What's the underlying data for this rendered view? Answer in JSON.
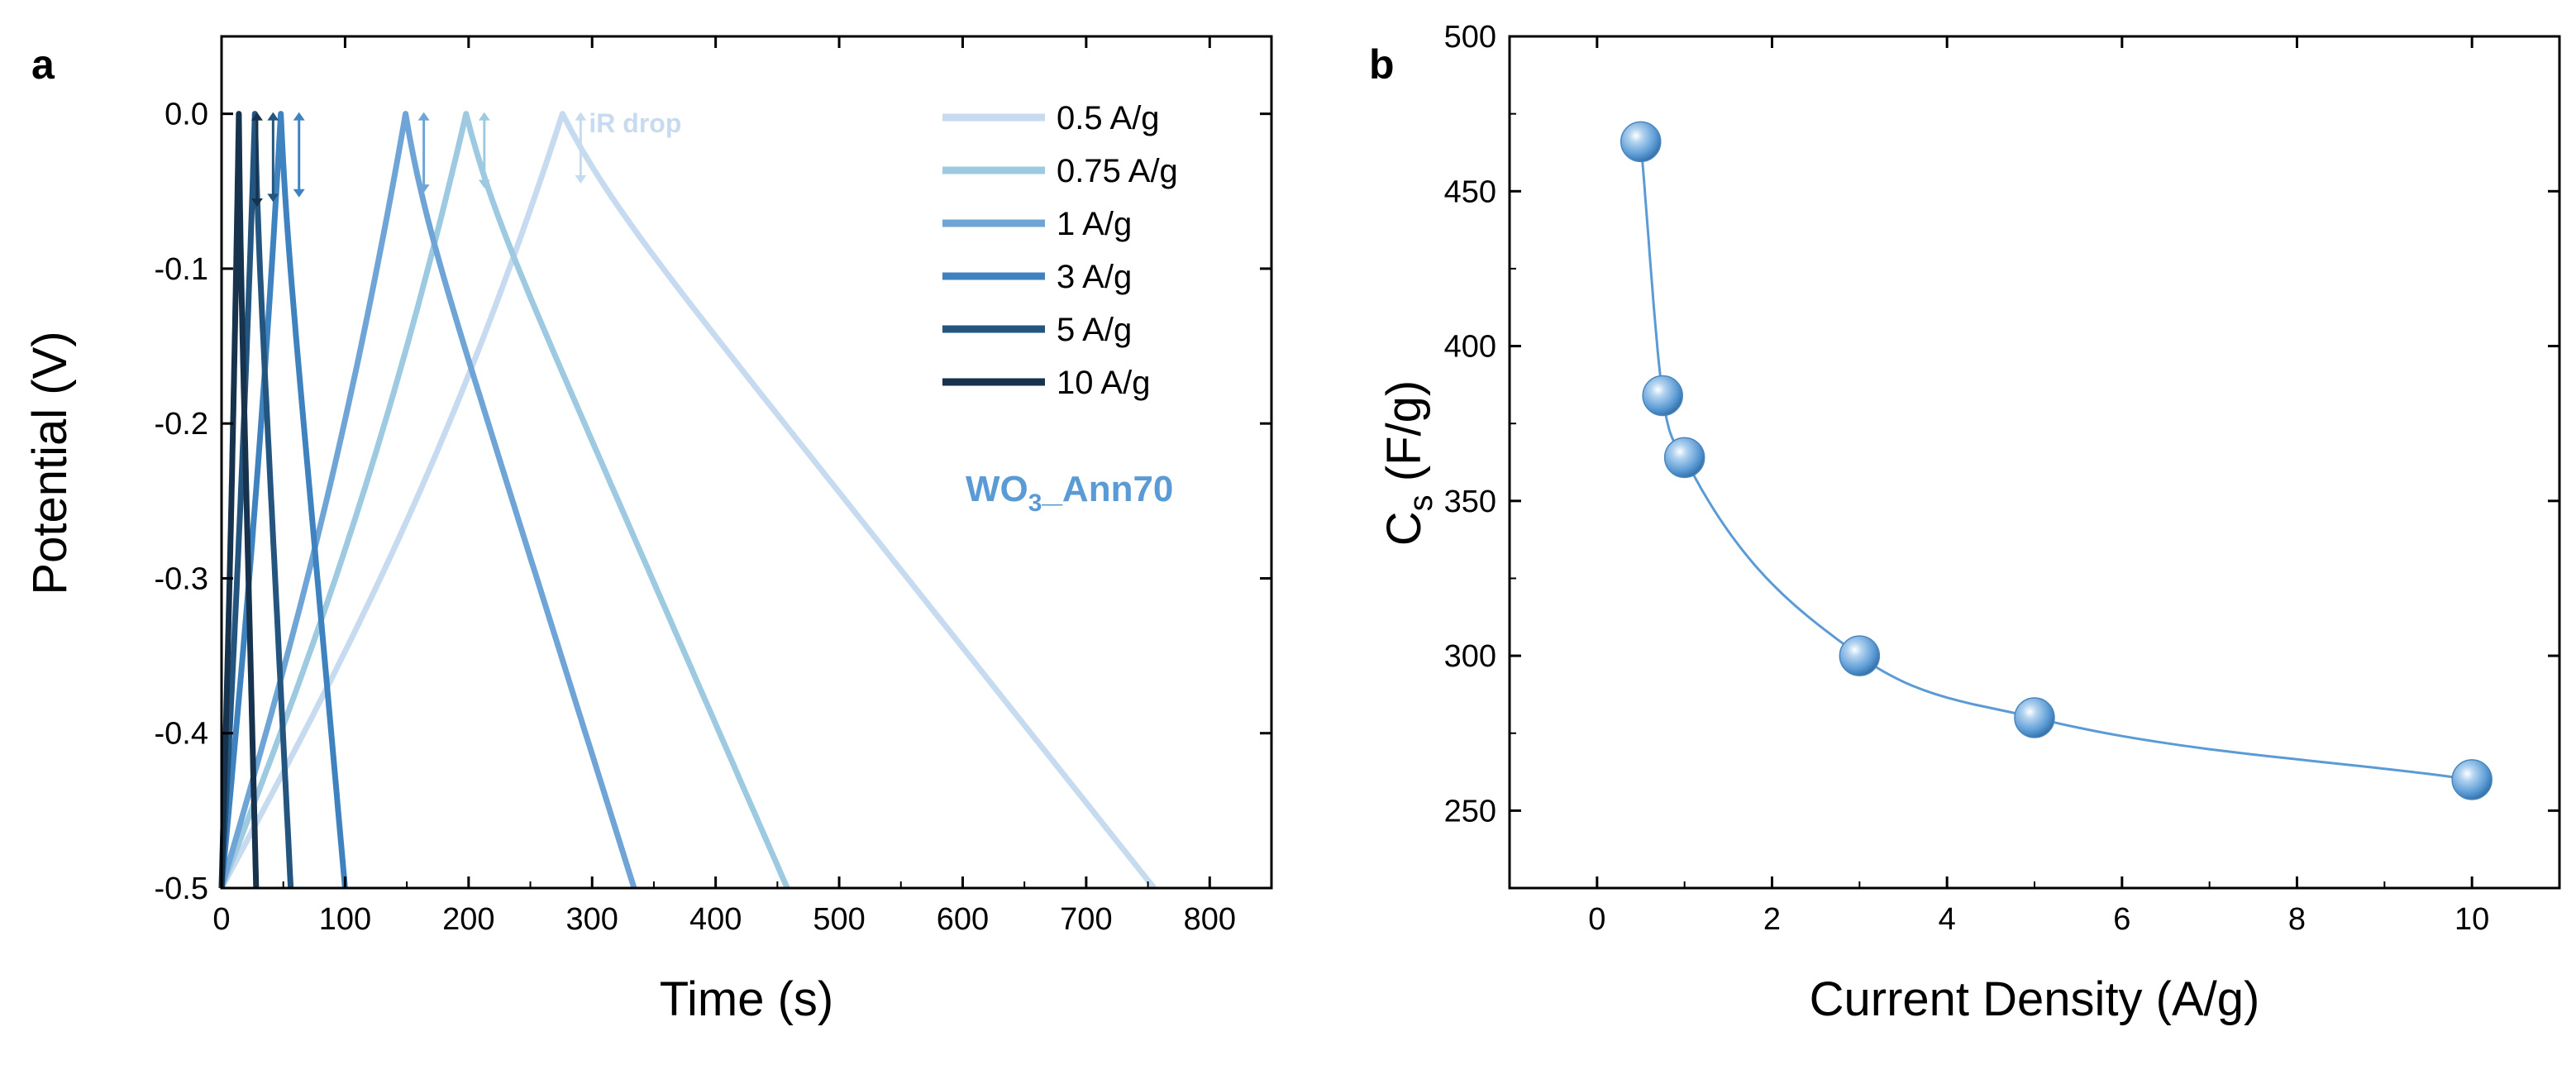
{
  "chart_data": [
    {
      "panel": "a",
      "type": "line",
      "xlabel": "Time (s)",
      "ylabel": "Potential (V)",
      "xlim": [
        0,
        850
      ],
      "ylim": [
        -0.5,
        0.05
      ],
      "xticks": [
        0,
        100,
        200,
        300,
        400,
        500,
        600,
        700,
        800
      ],
      "yticks": [
        0.0,
        -0.1,
        -0.2,
        -0.3,
        -0.4,
        -0.5
      ],
      "xtick_labels": [
        "0",
        "100",
        "200",
        "300",
        "400",
        "500",
        "600",
        "700",
        "800"
      ],
      "ytick_labels": [
        "0.0",
        "-0.1",
        "-0.2",
        "-0.3",
        "-0.4",
        "-0.5"
      ],
      "annotation": "iR drop",
      "sample_label": {
        "main": "WO",
        "sub": "3",
        "rest": "_Ann70"
      },
      "series": [
        {
          "name": "0.5 A/g",
          "color": "#c6dbef",
          "charge_end": 276,
          "discharge_end": 755,
          "ir_drop": 0.02
        },
        {
          "name": "0.75 A/g",
          "color": "#9ecae1",
          "charge_end": 198,
          "discharge_end": 458,
          "ir_drop": 0.025
        },
        {
          "name": "1 A/g",
          "color": "#6fa5d6",
          "charge_end": 149,
          "discharge_end": 334,
          "ir_drop": 0.03
        },
        {
          "name": "3 A/g",
          "color": "#3f82c0",
          "charge_end": 48,
          "discharge_end": 100,
          "ir_drop": 0.035
        },
        {
          "name": "5 A/g",
          "color": "#24557f",
          "charge_end": 27,
          "discharge_end": 56,
          "ir_drop": 0.04
        },
        {
          "name": "10 A/g",
          "color": "#16324d",
          "charge_end": 14,
          "discharge_end": 28,
          "ir_drop": 0.05
        }
      ]
    },
    {
      "panel": "b",
      "type": "scatter",
      "xlabel": "Current Density (A/g)",
      "ylabel": {
        "main": "C",
        "sub": "s",
        "rest": " (F/g)"
      },
      "xlim": [
        -1,
        11
      ],
      "ylim": [
        225,
        500
      ],
      "xticks": [
        0,
        2,
        4,
        6,
        8,
        10
      ],
      "yticks": [
        250,
        300,
        350,
        400,
        450,
        500
      ],
      "xtick_labels": [
        "0",
        "2",
        "4",
        "6",
        "8",
        "10"
      ],
      "ytick_labels": [
        "250",
        "300",
        "350",
        "400",
        "450",
        "500"
      ],
      "color": "#5b9bd5",
      "x": [
        0.5,
        0.75,
        1,
        3,
        5,
        10
      ],
      "y": [
        466,
        384,
        364,
        300,
        280,
        260
      ]
    }
  ]
}
